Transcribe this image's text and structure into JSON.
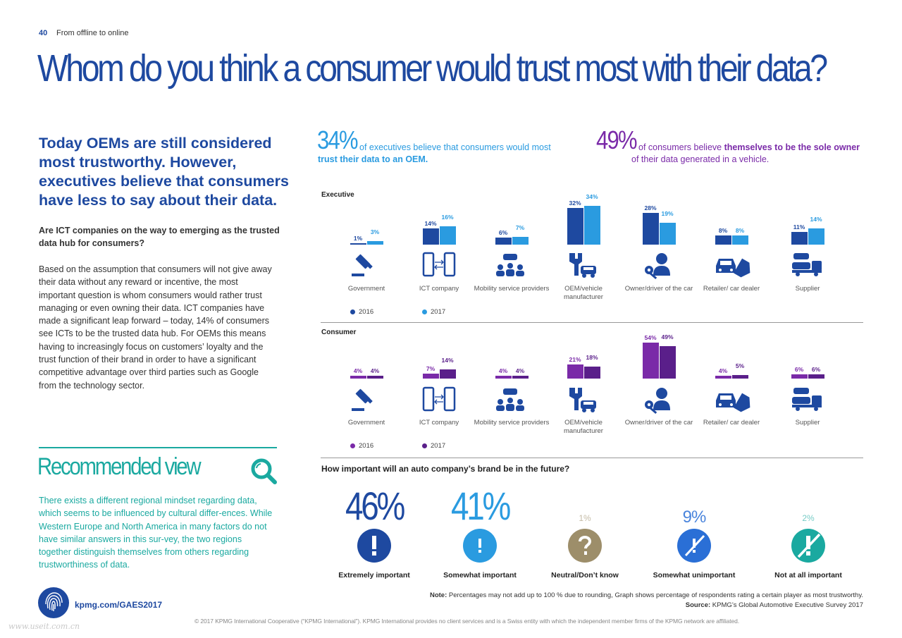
{
  "header": {
    "page_number": "40",
    "section": "From offline to online"
  },
  "title": "Whom do you think a consumer would trust most with their data?",
  "lead": "Today OEMs are still considered most trustworthy. However, executives believe that consumers have less to say about their data.",
  "question": "Are ICT companies on the way to emerging as the trusted data hub for consumers?",
  "body": "Based on the assumption that consumers will not give away their data without any reward or incentive, the most important question is whom consumers would rather trust managing or even owning their data. ICT companies have made a significant leap forward – today, 14% of consumers see ICTs to be the trusted data hub. For OEMs this means having to increasingly focus on customers’ loyalty and the trust function of their brand in order to have a significant competitive advantage over third parties such as Google from the technology sector.",
  "recommended": {
    "title": "Recommended view",
    "text": "There exists a different regional mindset regarding data, which seems to be influenced by cultural differ-ences. While Western Europe and North America in many factors do not have similar answers in this sur-vey, the two regions together distinguish themselves from others regarding trustworthiness of data."
  },
  "link": "kpmg.com/GAES2017",
  "stats": {
    "exec": {
      "value": "34%",
      "text_a": "of executives believe that consumers would most",
      "text_b": "trust their data to an OEM."
    },
    "cons": {
      "value": "49%",
      "text_a": "of consumers believe",
      "text_bold": "themselves to be the sole owner",
      "text_b": "of their data generated in a vehicle."
    }
  },
  "colors": {
    "blue_dark": "#1e49a0",
    "blue_light": "#2a9be0",
    "purple_dark": "#5a1f8a",
    "purple_mid": "#7a2aa8",
    "teal": "#1aa9a0",
    "icon_blue": "#1e49a0",
    "brand_gray": "#9d8e6a"
  },
  "chart_data": [
    {
      "type": "bar",
      "title": "Executive",
      "categories": [
        "Government",
        "ICT company",
        "Mobility service providers",
        "OEM/vehicle manufacturer",
        "Owner/driver of the car",
        "Retailer/ car dealer",
        "Supplier"
      ],
      "series": [
        {
          "name": "2016",
          "values": [
            1,
            14,
            6,
            32,
            28,
            8,
            11
          ]
        },
        {
          "name": "2017",
          "values": [
            3,
            16,
            7,
            34,
            19,
            8,
            14
          ]
        }
      ],
      "value_labels": [
        [
          "1%",
          "3%"
        ],
        [
          "14%",
          "16%"
        ],
        [
          "6%",
          "7%"
        ],
        [
          "32%",
          "34%"
        ],
        [
          "28%",
          "19%"
        ],
        [
          "8%",
          "8%"
        ],
        [
          "11%",
          "14%"
        ]
      ],
      "icons": [
        "gavel-icon",
        "phone-exchange-icon",
        "people-car-icon",
        "wrench-car-icon",
        "person-key-icon",
        "car-tag-icon",
        "car-carrier-icon"
      ],
      "legend": [
        "2016",
        "2017"
      ],
      "colors": [
        "#1e49a0",
        "#2a9be0"
      ]
    },
    {
      "type": "bar",
      "title": "Consumer",
      "categories": [
        "Government",
        "ICT company",
        "Mobility service providers",
        "OEM/vehicle manufacturer",
        "Owner/driver of the car",
        "Retailer/ car dealer",
        "Supplier"
      ],
      "series": [
        {
          "name": "2016",
          "values": [
            4,
            7,
            4,
            21,
            54,
            4,
            6
          ]
        },
        {
          "name": "2017",
          "values": [
            4,
            14,
            4,
            18,
            49,
            5,
            6
          ]
        }
      ],
      "value_labels": [
        [
          "4%",
          "4%"
        ],
        [
          "7%",
          "14%"
        ],
        [
          "4%",
          "4%"
        ],
        [
          "21%",
          "18%"
        ],
        [
          "54%",
          "49%"
        ],
        [
          "4%",
          "5%"
        ],
        [
          "6%",
          "6%"
        ]
      ],
      "icons": [
        "gavel-icon",
        "phone-exchange-icon",
        "people-car-icon",
        "wrench-car-icon",
        "person-key-icon",
        "car-tag-icon",
        "car-carrier-icon"
      ],
      "legend": [
        "2016",
        "2017"
      ],
      "colors": [
        "#7a2aa8",
        "#5a1f8a"
      ]
    },
    {
      "type": "bar",
      "title": "How important will an auto company’s brand be in the future?",
      "categories": [
        "Extremely important",
        "Somewhat important",
        "Neutral/Don’t know",
        "Somewhat unimportant",
        "Not at all important"
      ],
      "values": [
        46,
        41,
        1,
        9,
        2
      ],
      "value_labels": [
        "46%",
        "41%",
        "1%",
        "9%",
        "2%"
      ],
      "colors": [
        "#1e49a0",
        "#2a9be0",
        "#9d8e6a",
        "#2a6fd6",
        "#1aa9a0"
      ]
    }
  ],
  "legend_labels": {
    "y2016": "2016",
    "y2017": "2017"
  },
  "footer": {
    "note_label": "Note:",
    "note": "Percentages may not add up to 100 % due to rounding, Graph shows percentage of respondents rating a certain player as most trustworthy.",
    "source_label": "Source:",
    "source": "KPMG’s Global Automotive Executive Survey 2017",
    "copyright": "© 2017 KPMG International Cooperative (“KPMG International”). KPMG International provides no client services and is a Swiss entity with which the independent member firms of the KPMG network are affiliated.",
    "watermark": "www.useit.com.cn"
  }
}
